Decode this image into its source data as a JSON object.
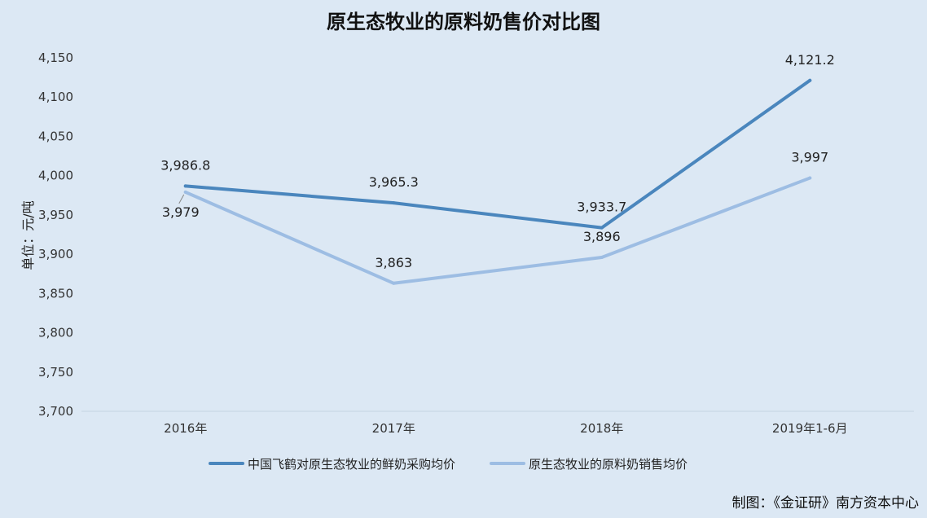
{
  "chart_data": {
    "type": "line",
    "title": "原生态牧业的原料奶售价对比图",
    "ylabel": "单位：元/吨",
    "xlabel": "",
    "categories": [
      "2016年",
      "2017年",
      "2018年",
      "2019年1-6月"
    ],
    "ylim": [
      3700,
      4150
    ],
    "yticks": [
      3700,
      3750,
      3800,
      3850,
      3900,
      3950,
      4000,
      4050,
      4100,
      4150
    ],
    "ytick_labels": [
      "3,700",
      "3,750",
      "3,800",
      "3,850",
      "3,900",
      "3,950",
      "4,000",
      "4,050",
      "4,100",
      "4,150"
    ],
    "grid": false,
    "legend_position": "bottom",
    "series": [
      {
        "name": "中国飞鹤对原生态牧业的鲜奶采购均价",
        "values": [
          3986.8,
          3965.3,
          3933.7,
          4121.2
        ],
        "labels": [
          "3,986.8",
          "3,965.3",
          "3,933.7",
          "4,121.2"
        ],
        "color": "#4a86bd"
      },
      {
        "name": "原生态牧业的原料奶销售均价",
        "values": [
          3979,
          3863,
          3896,
          3997
        ],
        "labels": [
          "3,979",
          "3,863",
          "3,896",
          "3,997"
        ],
        "color": "#9dbde3"
      }
    ]
  },
  "credit": "制图：《金证研》南方资本中心",
  "colors": {
    "background": "#dce8f4",
    "axis": "#c5d3e2"
  }
}
